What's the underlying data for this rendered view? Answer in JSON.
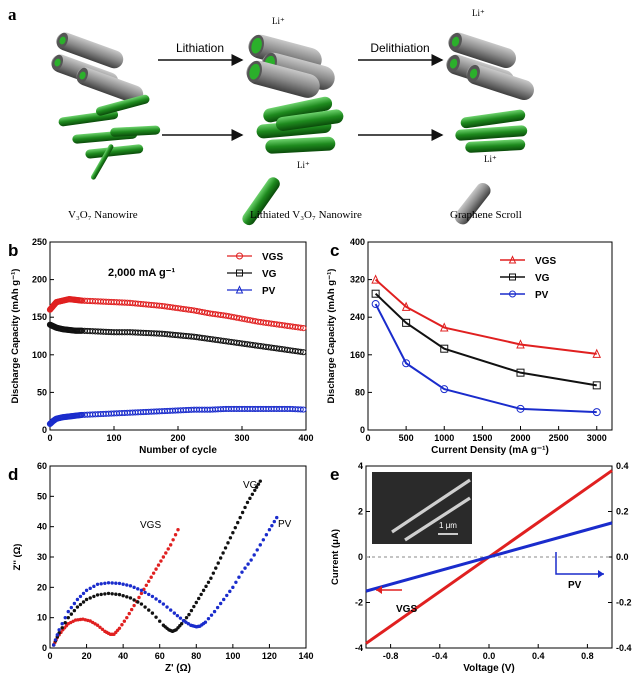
{
  "panel_a": {
    "label": "a",
    "lithiation": "Lithiation",
    "delithiation": "Delithiation",
    "li_plus": "Li⁺",
    "legend_nanowire": "V₃O₇ Nanowire",
    "legend_lithiated": "Lithiated V₃O₇ Nanowire",
    "legend_scroll": "Graphene Scroll"
  },
  "colors": {
    "vgs": "#e02020",
    "vg": "#111111",
    "pv": "#1a2ccc",
    "green": "#1e8a1e",
    "gray": "#7a7a7a"
  },
  "chart_data": [
    {
      "id": "b",
      "type": "scatter",
      "label": "b",
      "annotation": "2,000 mA g⁻¹",
      "xlabel": "Number of cycle",
      "ylabel": "Discharge Capacity  (mAh g⁻¹)",
      "xlim": [
        0,
        400
      ],
      "ylim": [
        0,
        250
      ],
      "xticks": [
        0,
        100,
        200,
        300,
        400
      ],
      "yticks": [
        0,
        50,
        100,
        150,
        200,
        250
      ],
      "legend_position": "top-right",
      "series": [
        {
          "name": "VGS",
          "marker": "circle-open",
          "x": [
            0,
            5,
            10,
            20,
            30,
            40,
            50,
            75,
            100,
            125,
            150,
            175,
            200,
            225,
            250,
            275,
            300,
            325,
            350,
            375,
            400
          ],
          "y": [
            160,
            165,
            170,
            172,
            174,
            173,
            172,
            171,
            170,
            169,
            167,
            165,
            162,
            159,
            155,
            152,
            148,
            144,
            141,
            138,
            135
          ]
        },
        {
          "name": "VG",
          "marker": "square-open",
          "x": [
            0,
            5,
            10,
            20,
            30,
            40,
            50,
            75,
            100,
            125,
            150,
            175,
            200,
            225,
            250,
            275,
            300,
            325,
            350,
            375,
            400
          ],
          "y": [
            140,
            138,
            136,
            134,
            133,
            132,
            132,
            131,
            130,
            130,
            129,
            128,
            126,
            124,
            121,
            118,
            115,
            112,
            109,
            106,
            103
          ]
        },
        {
          "name": "PV",
          "marker": "triangle-open",
          "x": [
            0,
            5,
            10,
            20,
            30,
            40,
            50,
            75,
            100,
            125,
            150,
            175,
            200,
            225,
            250,
            275,
            300,
            325,
            350,
            375,
            400
          ],
          "y": [
            8,
            12,
            15,
            17,
            18,
            19,
            20,
            21,
            22,
            23,
            24,
            25,
            26,
            27,
            27,
            28,
            28,
            28,
            28,
            28,
            27
          ]
        }
      ]
    },
    {
      "id": "c",
      "type": "line",
      "label": "c",
      "xlabel": "Current Density (mA g⁻¹)",
      "ylabel": "Discharge Capacity (mAh g⁻¹)",
      "xlim": [
        0,
        3200
      ],
      "ylim": [
        0,
        400
      ],
      "xticks": [
        0,
        500,
        1000,
        1500,
        2000,
        2500,
        3000
      ],
      "yticks": [
        0,
        80,
        160,
        240,
        320,
        400
      ],
      "legend_position": "top-right",
      "x": [
        100,
        500,
        1000,
        2000,
        3000
      ],
      "series": [
        {
          "name": "VGS",
          "marker": "triangle-open",
          "values": [
            320,
            262,
            218,
            182,
            162
          ]
        },
        {
          "name": "VG",
          "marker": "square-open",
          "values": [
            290,
            228,
            173,
            122,
            95
          ]
        },
        {
          "name": "PV",
          "marker": "circle-open",
          "values": [
            268,
            142,
            87,
            45,
            38
          ]
        }
      ]
    },
    {
      "id": "d",
      "type": "scatter",
      "label": "d",
      "xlabel": "Z' (Ω)",
      "ylabel": "Z'' (Ω)",
      "xlim": [
        0,
        140
      ],
      "ylim": [
        0,
        60
      ],
      "xticks": [
        0,
        20,
        40,
        60,
        80,
        100,
        120,
        140
      ],
      "yticks": [
        0,
        10,
        20,
        30,
        40,
        50,
        60
      ],
      "series": [
        {
          "name": "VGS",
          "x": [
            2,
            4,
            7,
            10,
            14,
            18,
            22,
            26,
            30,
            33,
            35,
            38,
            42,
            46,
            50,
            54,
            58,
            62,
            66,
            70
          ],
          "y": [
            1,
            3.5,
            6,
            8,
            9.2,
            9.5,
            8.9,
            7.5,
            5.5,
            4.5,
            4.5,
            6.5,
            10,
            14,
            18,
            22,
            26,
            30,
            34,
            39
          ]
        },
        {
          "name": "VG",
          "x": [
            2,
            5,
            10,
            15,
            20,
            26,
            32,
            38,
            44,
            50,
            56,
            62,
            65,
            67,
            69,
            72,
            76,
            80,
            84,
            88,
            92,
            96,
            100,
            104,
            108,
            112,
            115
          ],
          "y": [
            1,
            5,
            10,
            13.5,
            16,
            17.5,
            18,
            17.6,
            16.5,
            14.5,
            11.5,
            7.5,
            6,
            5.5,
            6,
            8,
            11,
            15,
            19,
            23,
            28,
            33,
            38,
            43,
            48,
            52,
            55
          ]
        },
        {
          "name": "PV",
          "x": [
            2,
            5,
            10,
            15,
            20,
            26,
            32,
            38,
            44,
            50,
            56,
            62,
            68,
            73,
            77,
            80,
            82,
            85,
            90,
            95,
            100,
            105,
            110,
            115,
            120,
            124
          ],
          "y": [
            1,
            6,
            12,
            16,
            19,
            21,
            21.5,
            21.3,
            20.5,
            19,
            17,
            14.5,
            11.5,
            9,
            7.5,
            7,
            7.2,
            8.5,
            12,
            16,
            20,
            25,
            29,
            34,
            39,
            43
          ]
        }
      ],
      "annotations": [
        "VGS",
        "VG",
        "PV"
      ]
    },
    {
      "id": "e",
      "type": "line",
      "label": "e",
      "xlabel": "Voltage (V)",
      "ylabel": "Current (μA)",
      "xlim": [
        -1,
        1
      ],
      "ylim": [
        -4,
        4
      ],
      "y2lim": [
        -0.4,
        0.4
      ],
      "xticks": [
        -0.8,
        -0.4,
        0.0,
        0.4,
        0.8
      ],
      "yticks": [
        -4,
        -2,
        0,
        2,
        4
      ],
      "y2ticks": [
        -0.4,
        -0.2,
        0.0,
        0.2,
        0.4
      ],
      "xticklabels": [
        "-0.8",
        "-0.4",
        "0.0",
        "0.4",
        "0.8"
      ],
      "y2ticklabels": [
        "-0.4",
        "-0.2",
        "0.0",
        "0.2",
        "0.4"
      ],
      "scale_bar": "1 μm",
      "series": [
        {
          "name": "VGS",
          "axis": "left",
          "x": [
            -1,
            1
          ],
          "values": [
            -3.8,
            3.8
          ]
        },
        {
          "name": "PV",
          "axis": "right",
          "x": [
            -1,
            1
          ],
          "values": [
            -0.15,
            0.15
          ]
        }
      ]
    }
  ]
}
